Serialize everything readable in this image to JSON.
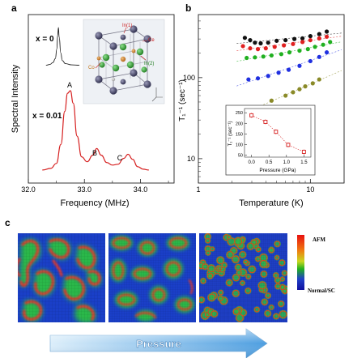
{
  "panel_labels": {
    "a": "a",
    "b": "b",
    "c": "c"
  },
  "chart_data": [
    {
      "panel": "a",
      "type": "line",
      "xlabel": "Frequency (MHz)",
      "ylabel": "Spectral Intensity",
      "xlim": [
        32.0,
        34.6
      ],
      "xticks": [
        "32.0",
        "33.0",
        "34.0"
      ],
      "series": [
        {
          "name": "x = 0",
          "color": "#222222",
          "x": [
            32.55,
            32.6,
            32.64,
            32.67,
            32.69,
            32.7,
            32.71,
            32.72,
            32.74,
            32.76,
            32.8,
            32.88,
            32.98
          ],
          "y": [
            0.03,
            0.05,
            0.1,
            0.2,
            0.45,
            0.8,
            1.0,
            0.75,
            0.35,
            0.15,
            0.07,
            0.04,
            0.03
          ]
        },
        {
          "name": "x = 0.01",
          "color": "#d62020",
          "x": [
            32.25,
            32.4,
            32.5,
            32.58,
            32.65,
            32.7,
            32.75,
            32.8,
            32.87,
            32.95,
            33.05,
            33.15,
            33.22,
            33.3,
            33.4,
            33.5,
            33.6,
            33.7,
            33.78,
            33.86,
            33.95,
            34.05,
            34.15
          ],
          "y": [
            0.04,
            0.06,
            0.12,
            0.35,
            0.75,
            0.97,
            1.0,
            0.85,
            0.45,
            0.2,
            0.14,
            0.22,
            0.3,
            0.22,
            0.13,
            0.1,
            0.11,
            0.18,
            0.23,
            0.17,
            0.08,
            0.05,
            0.04
          ]
        }
      ],
      "annotations": [
        "A",
        "B",
        "C"
      ],
      "inset_labels": [
        "In(1)",
        "Ce",
        "Co",
        "In(2)"
      ]
    },
    {
      "panel": "b",
      "type": "scatter",
      "xlabel": "Temperature (K)",
      "ylabel": "T₁⁻¹ (sec⁻¹)",
      "xscale": "log",
      "yscale": "log",
      "xlim": [
        1,
        20
      ],
      "ylim": [
        5,
        600
      ],
      "xticks": [
        "1",
        "10"
      ],
      "yticks": [
        "10",
        "100"
      ],
      "series": [
        {
          "color": "#111111",
          "x": [
            2.6,
            2.9,
            3.2,
            3.6,
            4.2,
            5.0,
            6.0,
            7.2,
            8.5,
            10,
            12,
            14
          ],
          "y": [
            310,
            290,
            270,
            265,
            270,
            285,
            290,
            300,
            305,
            325,
            345,
            370
          ]
        },
        {
          "color": "#e02020",
          "x": [
            2.5,
            2.9,
            3.4,
            4.0,
            4.8,
            5.8,
            7.0,
            8.5,
            10,
            12,
            14
          ],
          "y": [
            245,
            230,
            225,
            230,
            240,
            250,
            260,
            275,
            290,
            305,
            320
          ]
        },
        {
          "color": "#20b020",
          "x": [
            2.7,
            3.2,
            3.8,
            4.5,
            5.5,
            6.5,
            8.0,
            9.5,
            11,
            13,
            15
          ],
          "y": [
            175,
            178,
            182,
            188,
            195,
            205,
            215,
            225,
            240,
            255,
            275
          ]
        },
        {
          "color": "#2030e0",
          "x": [
            2.8,
            3.4,
            4.2,
            5.2,
            6.4,
            8.0,
            10,
            12,
            14
          ],
          "y": [
            95,
            98,
            105,
            115,
            125,
            140,
            160,
            180,
            205
          ]
        },
        {
          "color": "#8a8a28",
          "x": [
            3.2,
            4.5,
            6.0,
            7.0,
            8.0,
            9.0,
            10.5,
            12
          ],
          "y": [
            42,
            52,
            60,
            66,
            72,
            78,
            85,
            95
          ]
        }
      ],
      "inset": {
        "type": "scatter",
        "xlabel": "Pressure (GPa)",
        "ylabel": "T₁⁻¹ (sec⁻¹)",
        "xlim": [
          -0.2,
          1.7
        ],
        "ylim": [
          40,
          270
        ],
        "xticks": [
          "0.0",
          "0.5",
          "1.0",
          "1.5"
        ],
        "yticks": [
          "50",
          "100",
          "150",
          "200",
          "250"
        ],
        "x": [
          0.0,
          0.4,
          0.7,
          1.05,
          1.5
        ],
        "y": [
          238,
          207,
          160,
          98,
          65
        ],
        "color": "#d62020"
      }
    }
  ],
  "panel_c": {
    "colorbar_top": "AFM",
    "colorbar_bottom": "Normal/SC",
    "arrow_label": "Pressure"
  }
}
